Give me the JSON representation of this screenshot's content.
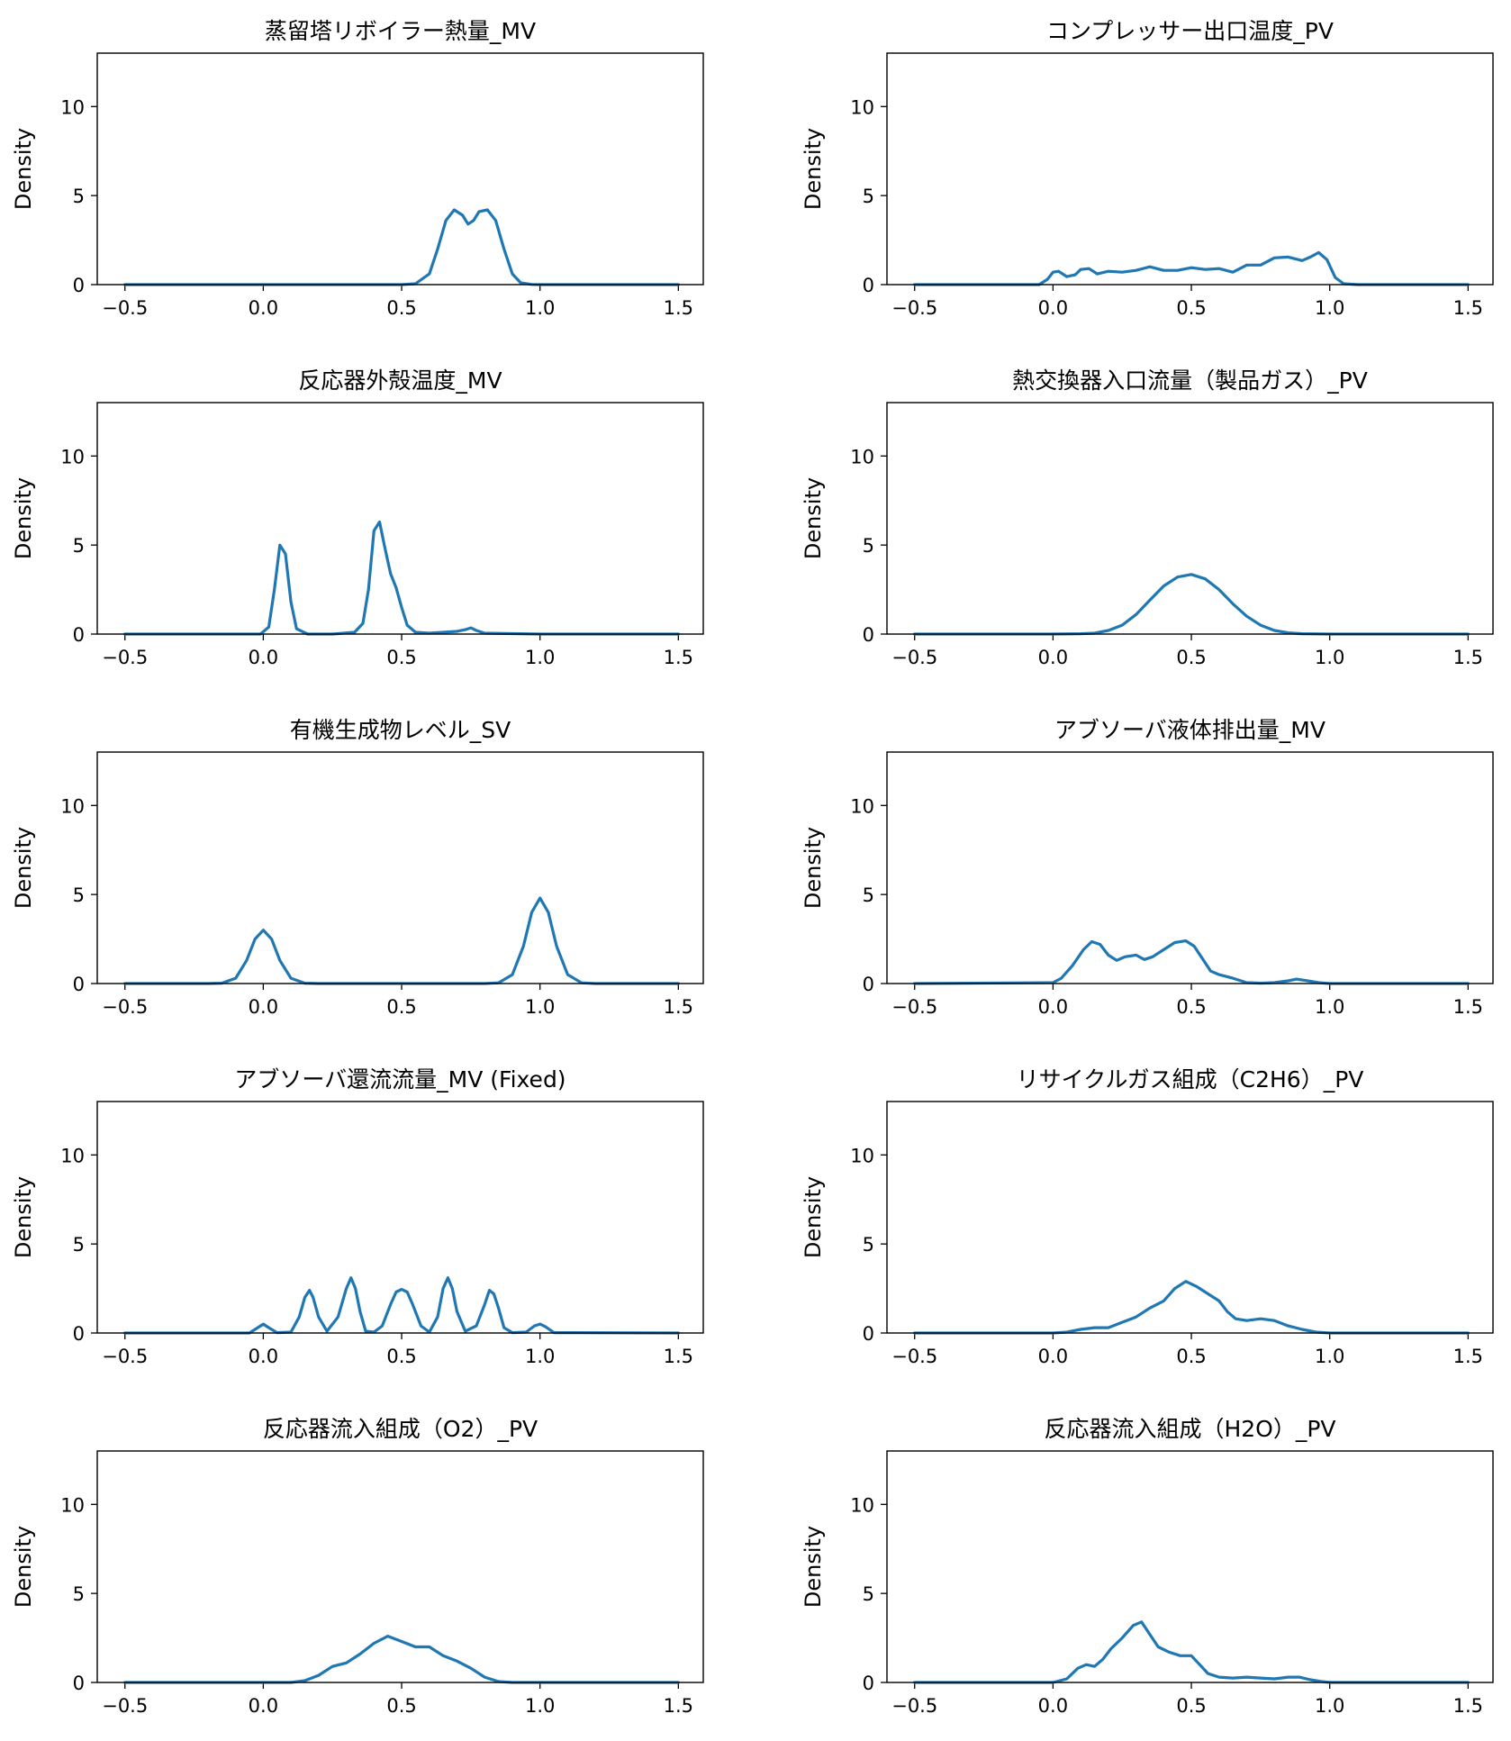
{
  "chart_data": [
    {
      "type": "line",
      "title": "蒸留塔リボイラー熱量_MV",
      "xlabel": "",
      "ylabel": "Density",
      "xlim": [
        -0.6,
        1.59
      ],
      "ylim": [
        0,
        13
      ],
      "xticks": [
        -0.5,
        0.0,
        0.5,
        1.0,
        1.5
      ],
      "xtick_labels": [
        "−0.5",
        "0.0",
        "0.5",
        "1.0",
        "1.5"
      ],
      "yticks": [
        0,
        5,
        10
      ],
      "ytick_labels": [
        "0",
        "5",
        "10"
      ],
      "grid": false,
      "color": "#1f77b4",
      "series": [
        {
          "x": [
            -0.5,
            0.0,
            0.5,
            0.55,
            0.6,
            0.63,
            0.66,
            0.69,
            0.72,
            0.74,
            0.76,
            0.78,
            0.81,
            0.84,
            0.87,
            0.9,
            0.93,
            0.97,
            1.0,
            1.5
          ],
          "y": [
            0,
            0,
            0,
            0.05,
            0.6,
            2.0,
            3.6,
            4.2,
            3.9,
            3.4,
            3.6,
            4.1,
            4.2,
            3.6,
            2.0,
            0.6,
            0.1,
            0.01,
            0,
            0
          ]
        }
      ]
    },
    {
      "type": "line",
      "title": "コンプレッサー出口温度_PV",
      "xlabel": "",
      "ylabel": "Density",
      "xlim": [
        -0.6,
        1.59
      ],
      "ylim": [
        0,
        13
      ],
      "xticks": [
        -0.5,
        0.0,
        0.5,
        1.0,
        1.5
      ],
      "xtick_labels": [
        "−0.5",
        "0.0",
        "0.5",
        "1.0",
        "1.5"
      ],
      "yticks": [
        0,
        5,
        10
      ],
      "ytick_labels": [
        "0",
        "5",
        "10"
      ],
      "grid": false,
      "color": "#1f77b4",
      "series": [
        {
          "x": [
            -0.5,
            -0.05,
            -0.02,
            0.0,
            0.02,
            0.05,
            0.08,
            0.1,
            0.13,
            0.16,
            0.2,
            0.25,
            0.3,
            0.35,
            0.4,
            0.45,
            0.5,
            0.55,
            0.6,
            0.65,
            0.7,
            0.75,
            0.8,
            0.85,
            0.9,
            0.93,
            0.96,
            0.99,
            1.02,
            1.05,
            1.1,
            1.5
          ],
          "y": [
            0,
            0,
            0.3,
            0.7,
            0.75,
            0.45,
            0.55,
            0.85,
            0.9,
            0.6,
            0.75,
            0.7,
            0.8,
            1.0,
            0.8,
            0.8,
            0.95,
            0.85,
            0.9,
            0.7,
            1.1,
            1.1,
            1.5,
            1.55,
            1.35,
            1.55,
            1.8,
            1.4,
            0.4,
            0.05,
            0,
            0
          ]
        }
      ]
    },
    {
      "type": "line",
      "title": "反応器外殻温度_MV",
      "xlabel": "",
      "ylabel": "Density",
      "xlim": [
        -0.6,
        1.59
      ],
      "ylim": [
        0,
        13
      ],
      "xticks": [
        -0.5,
        0.0,
        0.5,
        1.0,
        1.5
      ],
      "xtick_labels": [
        "−0.5",
        "0.0",
        "0.5",
        "1.0",
        "1.5"
      ],
      "yticks": [
        0,
        5,
        10
      ],
      "ytick_labels": [
        "0",
        "5",
        "10"
      ],
      "grid": false,
      "color": "#1f77b4",
      "series": [
        {
          "x": [
            -0.5,
            -0.01,
            0.02,
            0.04,
            0.06,
            0.08,
            0.1,
            0.12,
            0.16,
            0.25,
            0.33,
            0.36,
            0.38,
            0.4,
            0.42,
            0.44,
            0.46,
            0.48,
            0.5,
            0.52,
            0.55,
            0.6,
            0.65,
            0.7,
            0.73,
            0.75,
            0.77,
            0.8,
            1.0,
            1.5
          ],
          "y": [
            0,
            0,
            0.4,
            2.5,
            5.0,
            4.5,
            1.8,
            0.3,
            0,
            0,
            0.1,
            0.6,
            2.5,
            5.8,
            6.3,
            4.8,
            3.4,
            2.6,
            1.5,
            0.5,
            0.1,
            0.05,
            0.1,
            0.15,
            0.25,
            0.35,
            0.2,
            0.05,
            0,
            0
          ]
        }
      ]
    },
    {
      "type": "line",
      "title": "熱交換器入口流量（製品ガス）_PV",
      "xlabel": "",
      "ylabel": "Density",
      "xlim": [
        -0.6,
        1.59
      ],
      "ylim": [
        0,
        13
      ],
      "xticks": [
        -0.5,
        0.0,
        0.5,
        1.0,
        1.5
      ],
      "xtick_labels": [
        "−0.5",
        "0.0",
        "0.5",
        "1.0",
        "1.5"
      ],
      "yticks": [
        0,
        5,
        10
      ],
      "ytick_labels": [
        "0",
        "5",
        "10"
      ],
      "grid": false,
      "color": "#1f77b4",
      "series": [
        {
          "x": [
            -0.5,
            0.0,
            0.1,
            0.15,
            0.2,
            0.25,
            0.3,
            0.35,
            0.4,
            0.45,
            0.5,
            0.55,
            0.6,
            0.65,
            0.7,
            0.75,
            0.8,
            0.85,
            0.9,
            1.0,
            1.5
          ],
          "y": [
            0,
            0,
            0.02,
            0.05,
            0.2,
            0.5,
            1.1,
            1.9,
            2.7,
            3.2,
            3.35,
            3.1,
            2.5,
            1.7,
            1.0,
            0.5,
            0.2,
            0.07,
            0.02,
            0,
            0
          ]
        }
      ]
    },
    {
      "type": "line",
      "title": "有機生成物レベル_SV",
      "xlabel": "",
      "ylabel": "Density",
      "xlim": [
        -0.6,
        1.59
      ],
      "ylim": [
        0,
        13
      ],
      "xticks": [
        -0.5,
        0.0,
        0.5,
        1.0,
        1.5
      ],
      "xtick_labels": [
        "−0.5",
        "0.0",
        "0.5",
        "1.0",
        "1.5"
      ],
      "yticks": [
        0,
        5,
        10
      ],
      "ytick_labels": [
        "0",
        "5",
        "10"
      ],
      "grid": false,
      "color": "#1f77b4",
      "series": [
        {
          "x": [
            -0.5,
            -0.2,
            -0.15,
            -0.1,
            -0.06,
            -0.03,
            0.0,
            0.03,
            0.06,
            0.1,
            0.15,
            0.2,
            0.8,
            0.85,
            0.9,
            0.94,
            0.97,
            1.0,
            1.03,
            1.06,
            1.1,
            1.15,
            1.2,
            1.5
          ],
          "y": [
            0,
            0,
            0.02,
            0.3,
            1.3,
            2.5,
            3.0,
            2.5,
            1.3,
            0.3,
            0.02,
            0,
            0,
            0.04,
            0.5,
            2.1,
            4.0,
            4.8,
            4.0,
            2.1,
            0.5,
            0.04,
            0,
            0
          ]
        }
      ]
    },
    {
      "type": "line",
      "title": "アブソーバ液体排出量_MV",
      "xlabel": "",
      "ylabel": "Density",
      "xlim": [
        -0.6,
        1.59
      ],
      "ylim": [
        0,
        13
      ],
      "xticks": [
        -0.5,
        0.0,
        0.5,
        1.0,
        1.5
      ],
      "xtick_labels": [
        "−0.5",
        "0.0",
        "0.5",
        "1.0",
        "1.5"
      ],
      "yticks": [
        0,
        5,
        10
      ],
      "ytick_labels": [
        "0",
        "5",
        "10"
      ],
      "grid": false,
      "color": "#1f77b4",
      "series": [
        {
          "x": [
            -0.5,
            0.0,
            0.03,
            0.07,
            0.11,
            0.14,
            0.17,
            0.2,
            0.23,
            0.26,
            0.3,
            0.33,
            0.36,
            0.4,
            0.44,
            0.48,
            0.51,
            0.54,
            0.57,
            0.6,
            0.65,
            0.7,
            0.75,
            0.8,
            0.85,
            0.88,
            0.92,
            0.96,
            1.0,
            1.5
          ],
          "y": [
            0,
            0.05,
            0.3,
            1.0,
            1.9,
            2.35,
            2.2,
            1.6,
            1.3,
            1.5,
            1.6,
            1.35,
            1.5,
            1.9,
            2.3,
            2.4,
            2.1,
            1.4,
            0.7,
            0.5,
            0.3,
            0.05,
            0.02,
            0.05,
            0.15,
            0.25,
            0.15,
            0.05,
            0,
            0
          ]
        }
      ]
    },
    {
      "type": "line",
      "title": "アブソーバ還流流量_MV (Fixed)",
      "xlabel": "",
      "ylabel": "Density",
      "xlim": [
        -0.6,
        1.59
      ],
      "ylim": [
        0,
        13
      ],
      "xticks": [
        -0.5,
        0.0,
        0.5,
        1.0,
        1.5
      ],
      "xtick_labels": [
        "−0.5",
        "0.0",
        "0.5",
        "1.0",
        "1.5"
      ],
      "yticks": [
        0,
        5,
        10
      ],
      "ytick_labels": [
        "0",
        "5",
        "10"
      ],
      "grid": false,
      "color": "#1f77b4",
      "series": [
        {
          "x": [
            -0.5,
            -0.05,
            -0.02,
            0.0,
            0.02,
            0.05,
            0.1,
            0.13,
            0.15,
            0.167,
            0.18,
            0.2,
            0.23,
            0.27,
            0.3,
            0.317,
            0.333,
            0.35,
            0.37,
            0.4,
            0.43,
            0.46,
            0.48,
            0.5,
            0.52,
            0.54,
            0.57,
            0.6,
            0.63,
            0.65,
            0.667,
            0.683,
            0.7,
            0.73,
            0.77,
            0.8,
            0.817,
            0.833,
            0.85,
            0.87,
            0.9,
            0.95,
            0.98,
            1.0,
            1.02,
            1.05,
            1.5
          ],
          "y": [
            0,
            0,
            0.3,
            0.5,
            0.3,
            0.02,
            0.05,
            0.9,
            2.0,
            2.4,
            2.0,
            0.9,
            0.1,
            0.9,
            2.5,
            3.1,
            2.5,
            1.2,
            0.1,
            0.05,
            0.4,
            1.6,
            2.3,
            2.45,
            2.3,
            1.6,
            0.4,
            0.05,
            0.9,
            2.5,
            3.1,
            2.5,
            1.2,
            0.1,
            0.4,
            1.6,
            2.4,
            2.2,
            1.4,
            0.3,
            0.02,
            0.05,
            0.4,
            0.5,
            0.35,
            0.02,
            0
          ]
        }
      ]
    },
    {
      "type": "line",
      "title": "リサイクルガス組成（C2H6）_PV",
      "xlabel": "",
      "ylabel": "Density",
      "xlim": [
        -0.6,
        1.59
      ],
      "ylim": [
        0,
        13
      ],
      "xticks": [
        -0.5,
        0.0,
        0.5,
        1.0,
        1.5
      ],
      "xtick_labels": [
        "−0.5",
        "0.0",
        "0.5",
        "1.0",
        "1.5"
      ],
      "yticks": [
        0,
        5,
        10
      ],
      "ytick_labels": [
        "0",
        "5",
        "10"
      ],
      "grid": false,
      "color": "#1f77b4",
      "series": [
        {
          "x": [
            -0.5,
            0.0,
            0.05,
            0.1,
            0.15,
            0.2,
            0.25,
            0.3,
            0.35,
            0.4,
            0.44,
            0.48,
            0.52,
            0.56,
            0.6,
            0.63,
            0.66,
            0.7,
            0.75,
            0.8,
            0.85,
            0.9,
            0.95,
            1.0,
            1.5
          ],
          "y": [
            0,
            0,
            0.05,
            0.2,
            0.3,
            0.3,
            0.6,
            0.9,
            1.4,
            1.8,
            2.5,
            2.9,
            2.6,
            2.2,
            1.8,
            1.2,
            0.8,
            0.7,
            0.8,
            0.7,
            0.4,
            0.2,
            0.05,
            0,
            0
          ]
        }
      ]
    },
    {
      "type": "line",
      "title": "反応器流入組成（O2）_PV",
      "xlabel": "",
      "ylabel": "Density",
      "xlim": [
        -0.6,
        1.59
      ],
      "ylim": [
        0,
        13
      ],
      "xticks": [
        -0.5,
        0.0,
        0.5,
        1.0,
        1.5
      ],
      "xtick_labels": [
        "−0.5",
        "0.0",
        "0.5",
        "1.0",
        "1.5"
      ],
      "yticks": [
        0,
        5,
        10
      ],
      "ytick_labels": [
        "0",
        "5",
        "10"
      ],
      "grid": false,
      "color": "#1f77b4",
      "series": [
        {
          "x": [
            -0.5,
            0.1,
            0.15,
            0.2,
            0.25,
            0.3,
            0.35,
            0.4,
            0.45,
            0.5,
            0.55,
            0.6,
            0.65,
            0.7,
            0.75,
            0.8,
            0.85,
            0.9,
            1.0,
            1.5
          ],
          "y": [
            0,
            0,
            0.1,
            0.4,
            0.9,
            1.1,
            1.6,
            2.2,
            2.6,
            2.3,
            2.0,
            2.0,
            1.5,
            1.2,
            0.8,
            0.3,
            0.05,
            0,
            0,
            0
          ]
        }
      ]
    },
    {
      "type": "line",
      "title": "反応器流入組成（H2O）_PV",
      "xlabel": "",
      "ylabel": "Density",
      "xlim": [
        -0.6,
        1.59
      ],
      "ylim": [
        0,
        13
      ],
      "xticks": [
        -0.5,
        0.0,
        0.5,
        1.0,
        1.5
      ],
      "xtick_labels": [
        "−0.5",
        "0.0",
        "0.5",
        "1.0",
        "1.5"
      ],
      "yticks": [
        0,
        5,
        10
      ],
      "ytick_labels": [
        "0",
        "5",
        "10"
      ],
      "grid": false,
      "color": "#1f77b4",
      "series": [
        {
          "x": [
            -0.5,
            0.0,
            0.05,
            0.09,
            0.12,
            0.15,
            0.18,
            0.21,
            0.25,
            0.29,
            0.32,
            0.35,
            0.38,
            0.42,
            0.46,
            0.5,
            0.53,
            0.56,
            0.6,
            0.65,
            0.7,
            0.75,
            0.8,
            0.85,
            0.89,
            0.93,
            0.97,
            1.0,
            1.5
          ],
          "y": [
            0,
            0,
            0.2,
            0.8,
            1.0,
            0.9,
            1.3,
            1.9,
            2.5,
            3.2,
            3.4,
            2.7,
            2.0,
            1.7,
            1.5,
            1.5,
            1.0,
            0.5,
            0.3,
            0.25,
            0.3,
            0.25,
            0.2,
            0.3,
            0.3,
            0.15,
            0.05,
            0,
            0
          ]
        }
      ]
    }
  ]
}
